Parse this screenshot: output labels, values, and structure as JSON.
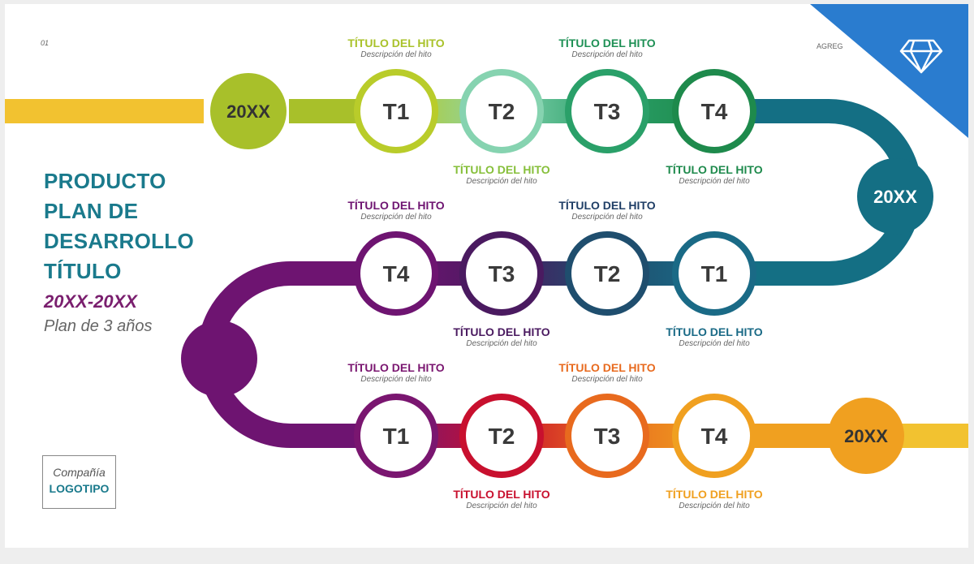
{
  "slide": {
    "page_number": "01",
    "agregar": "AGREG",
    "title_lines": [
      "PRODUCTO",
      "PLAN DE",
      "DESARROLLO",
      "TÍTULO"
    ],
    "years": "20XX-20XX",
    "plan": "Plan de 3 años",
    "logo": {
      "company": "Compañía",
      "text": "LOGOTIPO"
    },
    "corner_icon": "diamond-icon",
    "corner_color": "#2a7ccf"
  },
  "roadmap": {
    "years": [
      {
        "label": "20XX",
        "color": "#a8c02a"
      },
      {
        "label": "20XX",
        "color": "#146f84"
      },
      {
        "label": "",
        "color": "#6e1471"
      },
      {
        "label": "20XX",
        "color": "#f0a020"
      }
    ],
    "rows": [
      {
        "milestones": [
          {
            "label": "T1",
            "color": "#b9cc2a",
            "title": "TÍTULO DEL HITO",
            "description": "Descripción del hito",
            "label_pos": "above"
          },
          {
            "label": "T2",
            "color": "#86d3b0",
            "title": "TÍTULO DEL HITO",
            "description": "Descripción del hito",
            "label_pos": "below"
          },
          {
            "label": "T3",
            "color": "#2aa069",
            "title": "TÍTULO DEL HITO",
            "description": "Descripción del hito",
            "label_pos": "above"
          },
          {
            "label": "T4",
            "color": "#1e8a4c",
            "title": "TÍTULO DEL HITO",
            "description": "Descripción del hito",
            "label_pos": "below"
          }
        ],
        "label_colors": [
          "#a9c22a",
          "#86bf3a",
          "#1e9055",
          "#1e8a4c"
        ]
      },
      {
        "milestones": [
          {
            "label": "T4",
            "color": "#6e1471",
            "title": "TÍTULO DEL HITO",
            "description": "Descripción del hito",
            "label_pos": "above"
          },
          {
            "label": "T3",
            "color": "#4a1a60",
            "title": "TÍTULO DEL HITO",
            "description": "Descripción del hito",
            "label_pos": "below"
          },
          {
            "label": "T2",
            "color": "#1f4e6e",
            "title": "TÍTULO DEL HITO",
            "description": "Descripción del hito",
            "label_pos": "above"
          },
          {
            "label": "T1",
            "color": "#1a6a86",
            "title": "TÍTULO DEL HITO",
            "description": "Descripción del hito",
            "label_pos": "below"
          }
        ],
        "label_colors": [
          "#6e1471",
          "#4a1a60",
          "#1f3e66",
          "#1a6a86"
        ]
      },
      {
        "milestones": [
          {
            "label": "T1",
            "color": "#7a1670",
            "title": "TÍTULO DEL HITO",
            "description": "Descripción del hito",
            "label_pos": "above"
          },
          {
            "label": "T2",
            "color": "#c8102e",
            "title": "TÍTULO DEL HITO",
            "description": "Descripción del hito",
            "label_pos": "below"
          },
          {
            "label": "T3",
            "color": "#e86a1e",
            "title": "TÍTULO DEL HITO",
            "description": "Descripción del hito",
            "label_pos": "above"
          },
          {
            "label": "T4",
            "color": "#f0a020",
            "title": "TÍTULO DEL HITO",
            "description": "Descripción del hito",
            "label_pos": "below"
          }
        ],
        "label_colors": [
          "#7a1670",
          "#c8102e",
          "#e86a1e",
          "#f0a020"
        ]
      }
    ]
  }
}
